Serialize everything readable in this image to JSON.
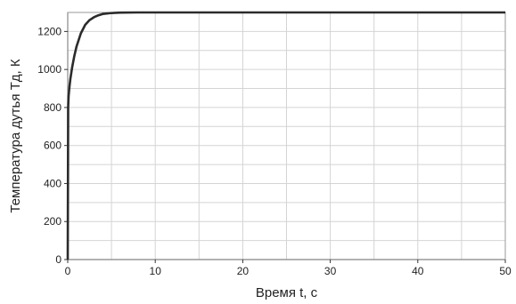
{
  "chart_data": {
    "type": "line",
    "title": "",
    "xlabel": "Время t, с",
    "ylabel": "Температура дутья Тд, К",
    "xlim": [
      0,
      50
    ],
    "ylim": [
      0,
      1300
    ],
    "x_ticks": [
      0,
      10,
      20,
      30,
      40,
      50
    ],
    "y_ticks": [
      0,
      200,
      400,
      600,
      800,
      1000,
      1200
    ],
    "x_tick_labels": [
      "0",
      "10",
      "20",
      "30",
      "40",
      "50"
    ],
    "y_tick_labels": [
      "0",
      "200",
      "400",
      "600",
      "800",
      "1000",
      "1200"
    ],
    "grid": true,
    "legend": "none",
    "series": [
      {
        "x": [
          0,
          0.05,
          0.1,
          0.2,
          0.3,
          0.5,
          0.75,
          1,
          1.5,
          2,
          2.5,
          3,
          3.5,
          4,
          5,
          6,
          8,
          10,
          15,
          20,
          30,
          40,
          50
        ],
        "y": [
          0,
          800,
          860,
          910,
          950,
          1010,
          1070,
          1120,
          1190,
          1235,
          1260,
          1275,
          1285,
          1292,
          1297,
          1299,
          1300,
          1300,
          1300,
          1300,
          1300,
          1300,
          1300
        ]
      }
    ],
    "colors": {
      "line": "#2b2b2b",
      "grid": "#d4d4d4",
      "axis": "#333333"
    }
  }
}
